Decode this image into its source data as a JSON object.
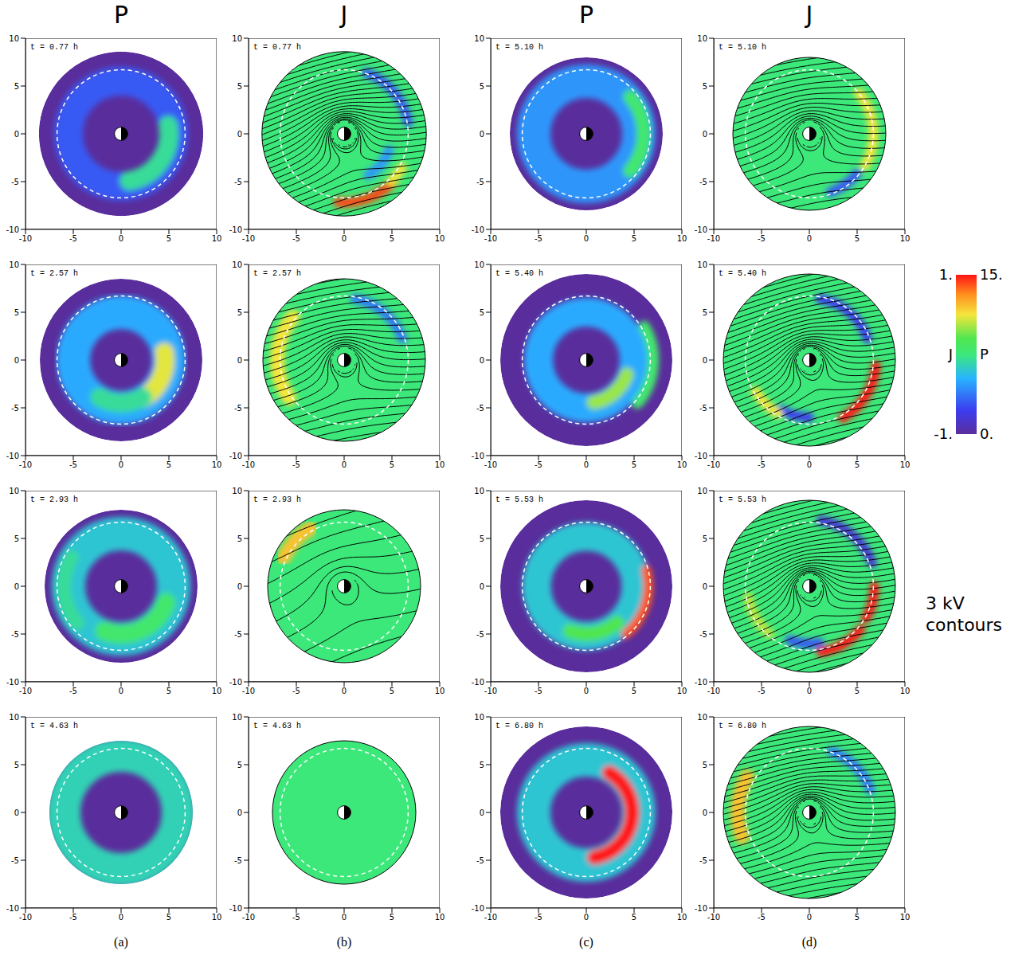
{
  "chart_data": {
    "type": "heatmap",
    "xlim": [
      -10,
      10
    ],
    "ylim": [
      -10,
      10
    ],
    "xticks": [
      -10,
      -5,
      0,
      5,
      10
    ],
    "yticks": [
      -10,
      -5,
      0,
      5,
      10
    ],
    "earth": {
      "x": 0,
      "y": 0,
      "radius": 0.7
    },
    "dashed_circle_radius": 6.7,
    "contour_step_kv": 3,
    "contour_label": "3 kV contours",
    "colorbar": [
      {
        "label": "J",
        "range": [
          -1,
          1
        ],
        "ticks": [
          {
            "value": -1,
            "label": "-1."
          },
          {
            "value": 1,
            "label": "1."
          }
        ]
      },
      {
        "label": "P",
        "range": [
          0,
          15
        ],
        "ticks": [
          {
            "value": 0,
            "label": "0."
          },
          {
            "value": 15,
            "label": "15."
          }
        ]
      }
    ],
    "columns": [
      {
        "title": "P",
        "letter": "(a)",
        "panels": [
          {
            "time_label": "t = 0.77 h",
            "boundary_radius": 8.6,
            "background": 0,
            "rings": [
              {
                "radius": 5.5,
                "width": 3,
                "value": 3
              }
            ],
            "arcs": [
              {
                "radius": 5,
                "width": 2,
                "start": -80,
                "end": 10,
                "value": 7
              }
            ],
            "potential": null
          },
          {
            "time_label": "t = 2.57 h",
            "boundary_radius": 8.5,
            "background": 0,
            "rings": [
              {
                "radius": 5,
                "width": 3.5,
                "value": 5
              }
            ],
            "arcs": [
              {
                "radius": 4.6,
                "width": 2,
                "start": -60,
                "end": 10,
                "value": 11
              },
              {
                "radius": 4.5,
                "width": 2,
                "start": -120,
                "end": -60,
                "value": 7
              }
            ],
            "potential": null
          },
          {
            "time_label": "t = 2.93 h",
            "boundary_radius": 8,
            "background": 0,
            "rings": [
              {
                "radius": 5.5,
                "width": 3.5,
                "value": 6
              }
            ],
            "arcs": [
              {
                "radius": 5,
                "width": 2,
                "start": -110,
                "end": -20,
                "value": 8
              },
              {
                "radius": 6,
                "width": 1.5,
                "start": 150,
                "end": 220,
                "value": 7
              }
            ],
            "potential": null
          },
          {
            "time_label": "t = 4.63 h",
            "boundary_radius": 7.5,
            "background": 0,
            "rings": [
              {
                "radius": 6,
                "width": 3.5,
                "value": 6.5
              }
            ],
            "arcs": [],
            "potential": null
          }
        ]
      },
      {
        "title": "J",
        "letter": "(b)",
        "panels": [
          {
            "time_label": "t = 0.77 h",
            "boundary_radius": 8.6,
            "background": 0,
            "rings": [],
            "arcs": [
              {
                "radius": 7.2,
                "width": 1,
                "start": -95,
                "end": -45,
                "value": 0.9
              },
              {
                "radius": 7,
                "width": 1,
                "start": -45,
                "end": -30,
                "value": 0.5
              },
              {
                "radius": 6.8,
                "width": 1,
                "start": 10,
                "end": 70,
                "value": -0.6
              },
              {
                "radius": 5,
                "width": 1,
                "start": -60,
                "end": -20,
                "value": -0.4
              }
            ],
            "potential": {
              "e_field": 5,
              "rotation": 15,
              "corotation": 40
            }
          },
          {
            "time_label": "t = 2.57 h",
            "boundary_radius": 8.5,
            "background": 0,
            "rings": [],
            "arcs": [
              {
                "radius": 7,
                "width": 1.5,
                "start": 140,
                "end": 215,
                "value": 0.5
              },
              {
                "radius": 6.5,
                "width": 1,
                "start": 20,
                "end": 80,
                "value": -0.5
              }
            ],
            "potential": {
              "e_field": 4,
              "rotation": 10,
              "corotation": 30
            }
          },
          {
            "time_label": "t = 2.93 h",
            "boundary_radius": 8,
            "background": 0,
            "rings": [],
            "arcs": [
              {
                "radius": 7,
                "width": 1.5,
                "start": 120,
                "end": 155,
                "value": 0.6
              }
            ],
            "potential": {
              "e_field": 1.5,
              "rotation": 20,
              "corotation": 12
            }
          },
          {
            "time_label": "t = 4.63 h",
            "boundary_radius": 7.5,
            "background": 0,
            "rings": [],
            "arcs": [],
            "potential": null
          }
        ]
      },
      {
        "title": "P",
        "letter": "(c)",
        "panels": [
          {
            "time_label": "t = 5.10 h",
            "boundary_radius": 8,
            "background": 0,
            "rings": [
              {
                "radius": 5.5,
                "width": 3.5,
                "value": 4.5
              }
            ],
            "arcs": [
              {
                "radius": 6,
                "width": 1.5,
                "start": -40,
                "end": 40,
                "value": 8
              }
            ],
            "potential": null
          },
          {
            "time_label": "t = 5.40 h",
            "boundary_radius": 9,
            "background": 0,
            "rings": [
              {
                "radius": 5,
                "width": 3,
                "value": 5
              }
            ],
            "arcs": [
              {
                "radius": 4.5,
                "width": 1.5,
                "start": -80,
                "end": -20,
                "value": 10
              },
              {
                "radius": 7,
                "width": 1.2,
                "start": -40,
                "end": 30,
                "value": 8
              }
            ],
            "potential": null
          },
          {
            "time_label": "t = 5.53 h",
            "boundary_radius": 9,
            "background": 0,
            "rings": [
              {
                "radius": 5.2,
                "width": 3,
                "value": 6
              }
            ],
            "arcs": [
              {
                "radius": 6.5,
                "width": 1,
                "start": -50,
                "end": 15,
                "value": 14
              },
              {
                "radius": 5,
                "width": 1.5,
                "start": -110,
                "end": -50,
                "value": 9
              }
            ],
            "potential": null
          },
          {
            "time_label": "t = 6.80 h",
            "boundary_radius": 9,
            "background": 0,
            "rings": [
              {
                "radius": 5.5,
                "width": 3.5,
                "value": 6
              }
            ],
            "arcs": [
              {
                "radius": 4.8,
                "width": 1.5,
                "start": -80,
                "end": 60,
                "value": 15
              }
            ],
            "potential": null
          }
        ]
      },
      {
        "title": "J",
        "letter": "(d)",
        "panels": [
          {
            "time_label": "t = 5.10 h",
            "boundary_radius": 8,
            "background": 0,
            "rings": [],
            "arcs": [
              {
                "radius": 6.7,
                "width": 1,
                "start": -30,
                "end": 40,
                "value": 0.5
              },
              {
                "radius": 6.5,
                "width": 1,
                "start": -70,
                "end": -40,
                "value": -0.6
              }
            ],
            "potential": {
              "e_field": 4,
              "rotation": 10,
              "corotation": 30
            }
          },
          {
            "time_label": "t = 5.40 h",
            "boundary_radius": 9,
            "background": 0,
            "rings": [],
            "arcs": [
              {
                "radius": 7,
                "width": 1,
                "start": -60,
                "end": -5,
                "value": 1
              },
              {
                "radius": 6.5,
                "width": 1,
                "start": 20,
                "end": 80,
                "value": -0.7
              },
              {
                "radius": 6,
                "width": 1,
                "start": -120,
                "end": -90,
                "value": -0.7
              },
              {
                "radius": 6.5,
                "width": 1,
                "start": -150,
                "end": -120,
                "value": 0.5
              }
            ],
            "potential": {
              "e_field": 5,
              "rotation": 15,
              "corotation": 35
            }
          },
          {
            "time_label": "t = 5.53 h",
            "boundary_radius": 9,
            "background": 0,
            "rings": [],
            "arcs": [
              {
                "radius": 7,
                "width": 1,
                "start": -80,
                "end": -40,
                "value": 1
              },
              {
                "radius": 6.8,
                "width": 1,
                "start": -30,
                "end": 0,
                "value": 1
              },
              {
                "radius": 7,
                "width": 1,
                "start": 20,
                "end": 80,
                "value": -0.8
              },
              {
                "radius": 6,
                "width": 1,
                "start": -110,
                "end": -80,
                "value": -0.6
              },
              {
                "radius": 6.5,
                "width": 1,
                "start": -170,
                "end": -130,
                "value": 0.4
              }
            ],
            "potential": {
              "e_field": 5,
              "rotation": 15,
              "corotation": 35
            }
          },
          {
            "time_label": "t = 6.80 h",
            "boundary_radius": 9,
            "background": 0,
            "rings": [],
            "arcs": [
              {
                "radius": 7.5,
                "width": 1.5,
                "start": 150,
                "end": 200,
                "value": 0.6
              },
              {
                "radius": 6.8,
                "width": 1,
                "start": 20,
                "end": 70,
                "value": -0.5
              }
            ],
            "potential": {
              "e_field": 5,
              "rotation": 10,
              "corotation": 35
            }
          }
        ]
      }
    ]
  }
}
